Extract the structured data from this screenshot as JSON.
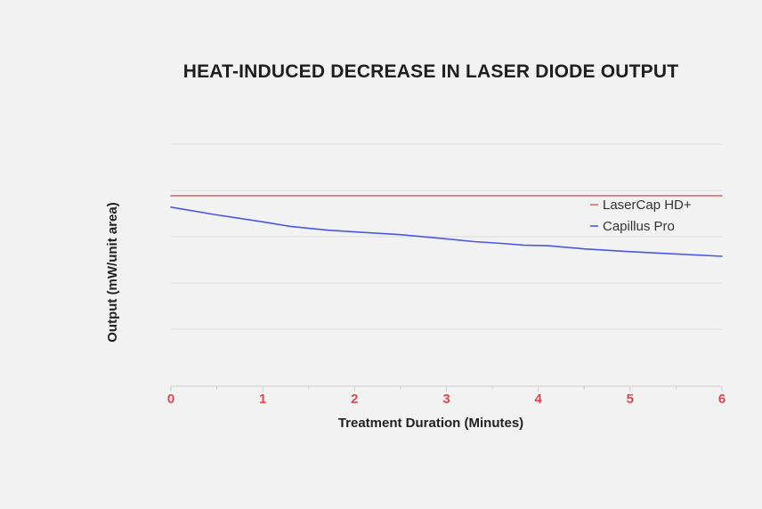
{
  "chart_data": {
    "type": "line",
    "title": "HEAT-INDUCED DECREASE IN LASER DIODE OUTPUT",
    "xlabel": "Treatment Duration (Minutes)",
    "ylabel": "Output (mW/unit area)",
    "xlim": [
      0,
      6
    ],
    "ylim": [
      0,
      5
    ],
    "x_ticks": [
      "0",
      "1",
      "2",
      "3",
      "4",
      "5",
      "6"
    ],
    "grid": true,
    "legend_position": "right",
    "series": [
      {
        "name": "LaserCap HD+",
        "color": "#e06b6b",
        "x": [
          0,
          6
        ],
        "y": [
          4.15,
          4.15
        ]
      },
      {
        "name": "Capillus Pro",
        "color": "#4a57e8",
        "x": [
          0,
          0.5,
          1,
          1.3,
          1.7,
          2,
          2.5,
          3,
          3.3,
          3.6,
          3.85,
          4.1,
          4.5,
          5,
          5.5,
          6
        ],
        "y": [
          3.9,
          3.73,
          3.58,
          3.48,
          3.4,
          3.36,
          3.3,
          3.21,
          3.15,
          3.11,
          3.07,
          3.06,
          2.99,
          2.93,
          2.88,
          2.83
        ]
      }
    ]
  },
  "colors": {
    "background": "#f2f2f2",
    "grid": "#dcdcdc",
    "axis": "#cfcfcf",
    "tick_label": "#e0454f"
  }
}
